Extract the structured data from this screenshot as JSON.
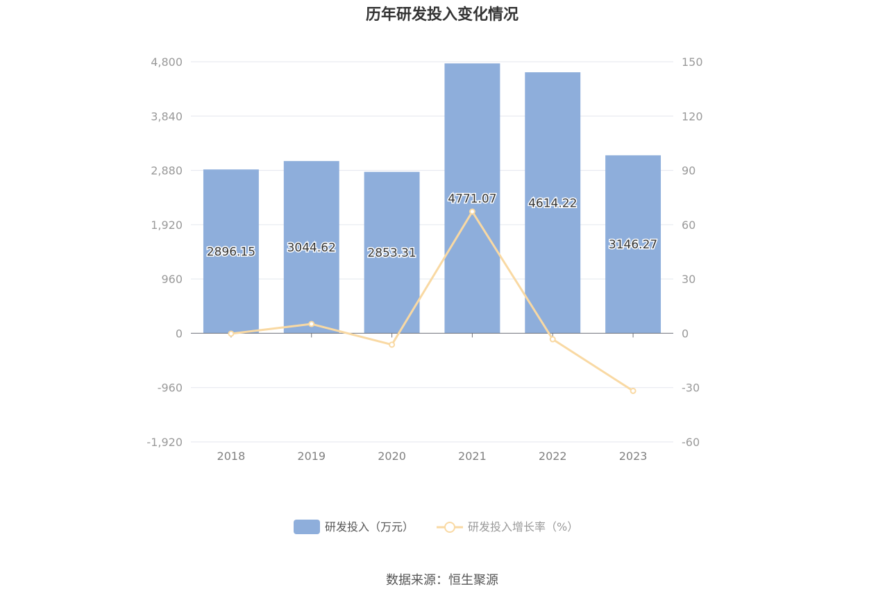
{
  "chart_data": {
    "type": "bar",
    "title": "历年研发投入变化情况",
    "categories": [
      "2018",
      "2019",
      "2020",
      "2021",
      "2022",
      "2023"
    ],
    "series": [
      {
        "name": "研发投入（万元）",
        "type": "bar",
        "axis": "left",
        "color": "#8eaedb",
        "values": [
          2896.15,
          3044.62,
          2853.31,
          4771.07,
          4614.22,
          3146.27
        ],
        "labels": [
          "2896.15",
          "3044.62",
          "2853.31",
          "4771.07",
          "4614.22",
          "3146.27"
        ]
      },
      {
        "name": "研发投入增长率（%）",
        "type": "line",
        "axis": "right",
        "color": "#f9d9a3",
        "values": [
          -0.2,
          5.13,
          -6.28,
          67.21,
          -3.29,
          -31.81
        ]
      }
    ],
    "y_left": {
      "ylim": [
        -1920,
        4800
      ],
      "ticks": [
        4800,
        3840,
        2880,
        1920,
        960,
        0,
        -960,
        -1920
      ],
      "tick_labels": [
        "4,800",
        "3,840",
        "2,880",
        "1,920",
        "960",
        "0",
        "-960",
        "-1,920"
      ]
    },
    "y_right": {
      "ylim": [
        -60,
        150
      ],
      "ticks": [
        150,
        120,
        90,
        60,
        30,
        0,
        -30,
        -60
      ],
      "tick_labels": [
        "150",
        "120",
        "90",
        "60",
        "30",
        "0",
        "-30",
        "-60"
      ]
    },
    "grid": true,
    "legend_position": "bottom",
    "source": "数据来源：恒生聚源"
  }
}
